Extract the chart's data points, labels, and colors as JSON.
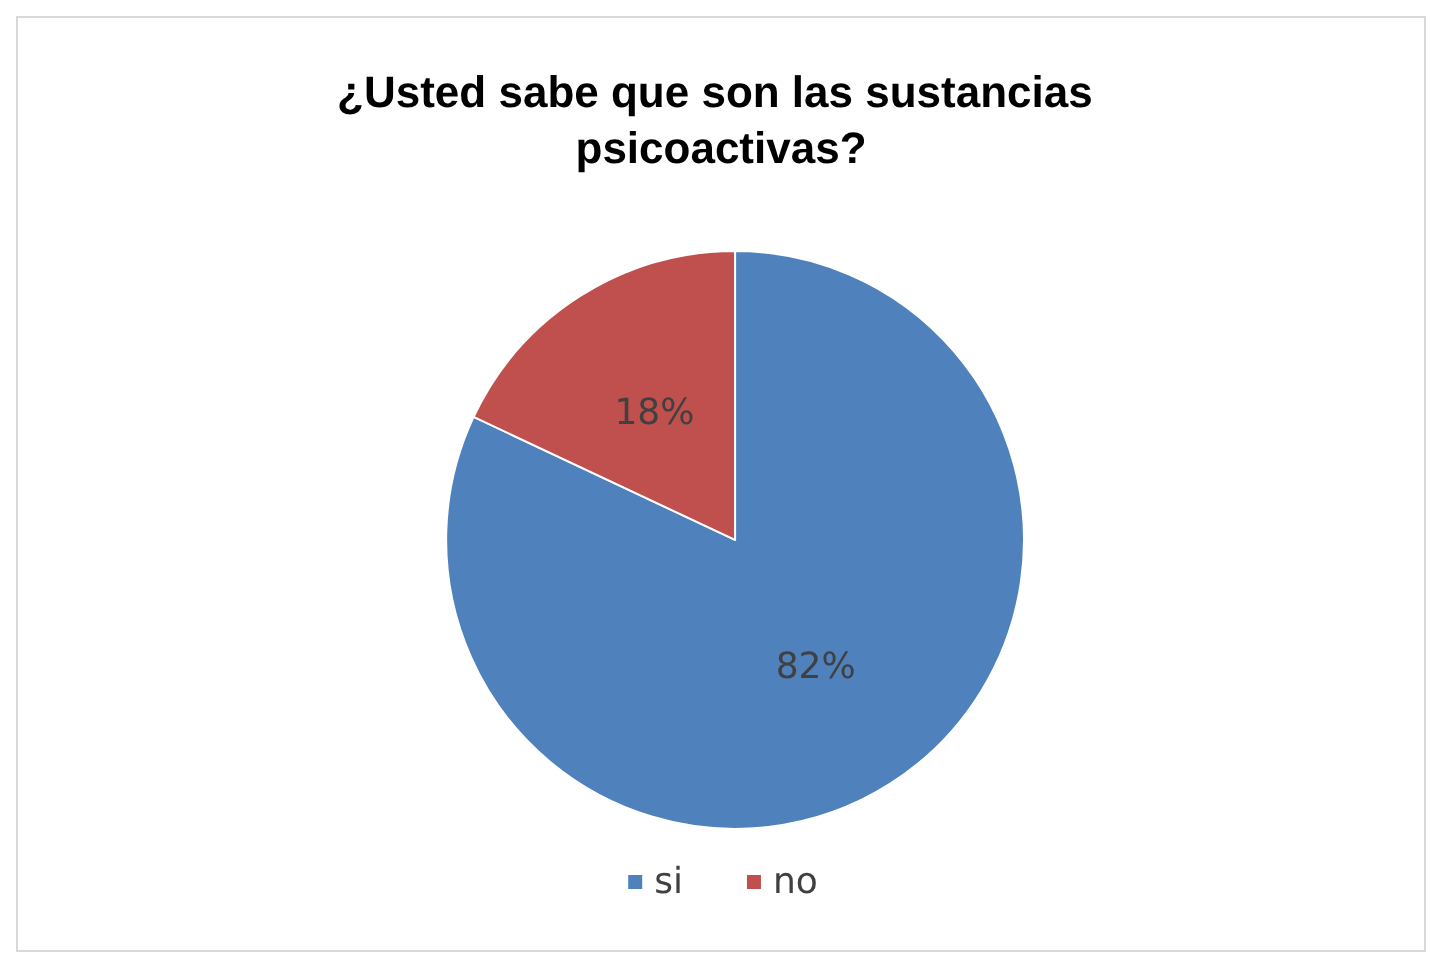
{
  "chart_data": {
    "type": "pie",
    "title": "¿Usted sabe que son las sustancias psicoactivas?",
    "categories": [
      "si",
      "no"
    ],
    "values": [
      82,
      18
    ],
    "colors": [
      "#4f81bd",
      "#c0504d"
    ],
    "value_labels": [
      "82%",
      "18%"
    ],
    "legend": "bottom"
  }
}
